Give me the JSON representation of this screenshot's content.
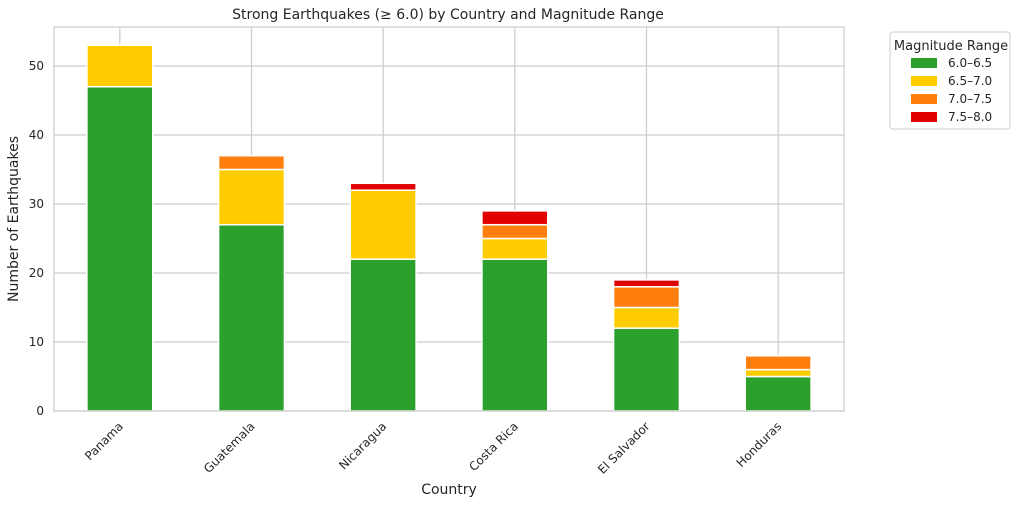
{
  "chart_data": {
    "type": "bar",
    "stacked": true,
    "title": "Strong Earthquakes (≥ 6.0) by Country and Magnitude Range",
    "xlabel": "Country",
    "ylabel": "Number of Earthquakes",
    "ylim": [
      0,
      55.65
    ],
    "yticks": [
      0,
      10,
      20,
      30,
      40,
      50
    ],
    "grid": true,
    "categories": [
      "Panama",
      "Guatemala",
      "Nicaragua",
      "Costa Rica",
      "El Salvador",
      "Honduras"
    ],
    "series": [
      {
        "name": "6.0–6.5",
        "color": "#2ca02c",
        "values": [
          47,
          27,
          22,
          22,
          12,
          5
        ]
      },
      {
        "name": "6.5–7.0",
        "color": "#ffcc00",
        "values": [
          6,
          8,
          10,
          3,
          3,
          1
        ]
      },
      {
        "name": "7.0–7.5",
        "color": "#ff7f0e",
        "values": [
          0,
          2,
          0,
          2,
          3,
          2
        ]
      },
      {
        "name": "7.5–8.0",
        "color": "#e00000",
        "values": [
          0,
          0,
          1,
          2,
          1,
          0
        ]
      }
    ],
    "legend": {
      "title": "Magnitude Range",
      "placement": "outside-top-right"
    }
  }
}
